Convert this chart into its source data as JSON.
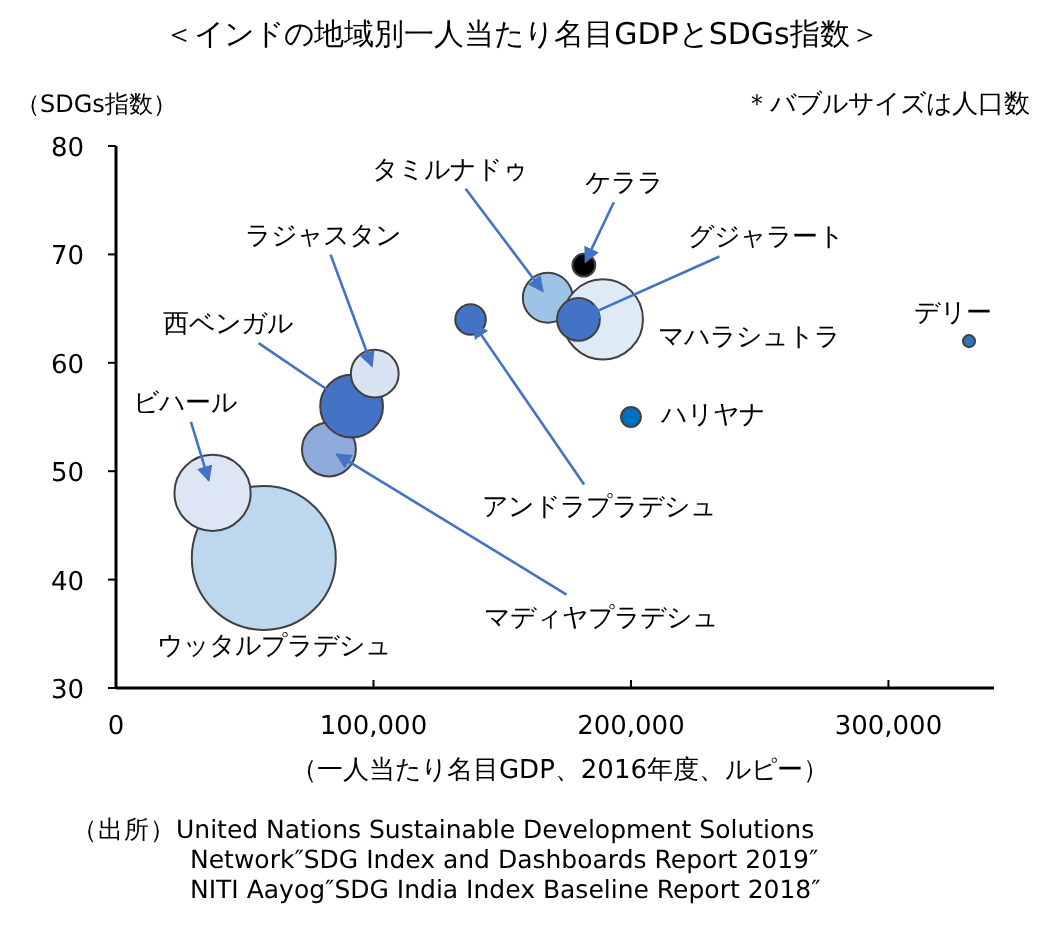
{
  "chart_data": {
    "type": "bubble",
    "title": "＜インドの地域別一人当たり名目GDPとSDGs指数＞",
    "ylabel": "（SDGs指数）",
    "xlabel": "（一人当たり名目GDP、2016年度、ルピー）",
    "x": [
      57400,
      37500,
      82700,
      91500,
      100500,
      137700,
      167700,
      181700,
      189100,
      179600,
      200000,
      331300
    ],
    "values": [
      42,
      48,
      52,
      56,
      59,
      64,
      66,
      69,
      64,
      64,
      55,
      62
    ],
    "sizes": [
      1,
      0.28,
      0.14,
      0.19,
      0.11,
      0.045,
      0.12,
      0.025,
      0.31,
      0.088,
      0.019,
      0.007
    ],
    "colors": [
      "#bdd7ee",
      "#dde6f4",
      "#8faadc",
      "#4472c4",
      "#dae3f3",
      "#4472c4",
      "#9dc3e6",
      "#000000",
      "#deebf7",
      "#4472c4",
      "#0070c0",
      "#2e75b6"
    ],
    "xlim": [
      0,
      341000
    ],
    "ylim": [
      30,
      80
    ],
    "xticks": [
      0,
      {
        "value": 100000,
        "label": "100,000"
      },
      {
        "value": 200000,
        "label": "200,000"
      },
      {
        "value": 300000,
        "label": "300,000"
      }
    ],
    "yticks": [
      30,
      40,
      50,
      60,
      70,
      80
    ],
    "grid": false,
    "annotations": [
      "＊バブルサイズは人口数",
      {
        "text": "ウッタルプラデシュ",
        "x": 57400,
        "y": 42
      },
      {
        "text": "ビハール",
        "x": 37500,
        "y": 48
      },
      {
        "text": "マディヤプラデシュ",
        "x": 82700,
        "y": 52
      },
      {
        "text": "西ベンガル",
        "x": 91500,
        "y": 56
      },
      {
        "text": "ラジャスタン",
        "x": 100500,
        "y": 59
      },
      {
        "text": "アンドラプラデシュ",
        "x": 137700,
        "y": 64
      },
      {
        "text": "タミルナドゥ",
        "x": 167700,
        "y": 66
      },
      {
        "text": "ケララ",
        "x": 181700,
        "y": 69
      },
      {
        "text": "マハラシュトラ",
        "x": 189100,
        "y": 64
      },
      {
        "text": "グジャラート",
        "x": 179600,
        "y": 64
      },
      {
        "text": "ハリヤナ",
        "x": 200000,
        "y": 55
      },
      {
        "text": "デリー",
        "x": 331300,
        "y": 62
      },
      "（出所）United Nations Sustainable Development Solutions\nNetwork″SDG Index and Dashboards Report 2019″\nNITI Aayog″SDG India Index Baseline Report 2018″"
    ]
  }
}
